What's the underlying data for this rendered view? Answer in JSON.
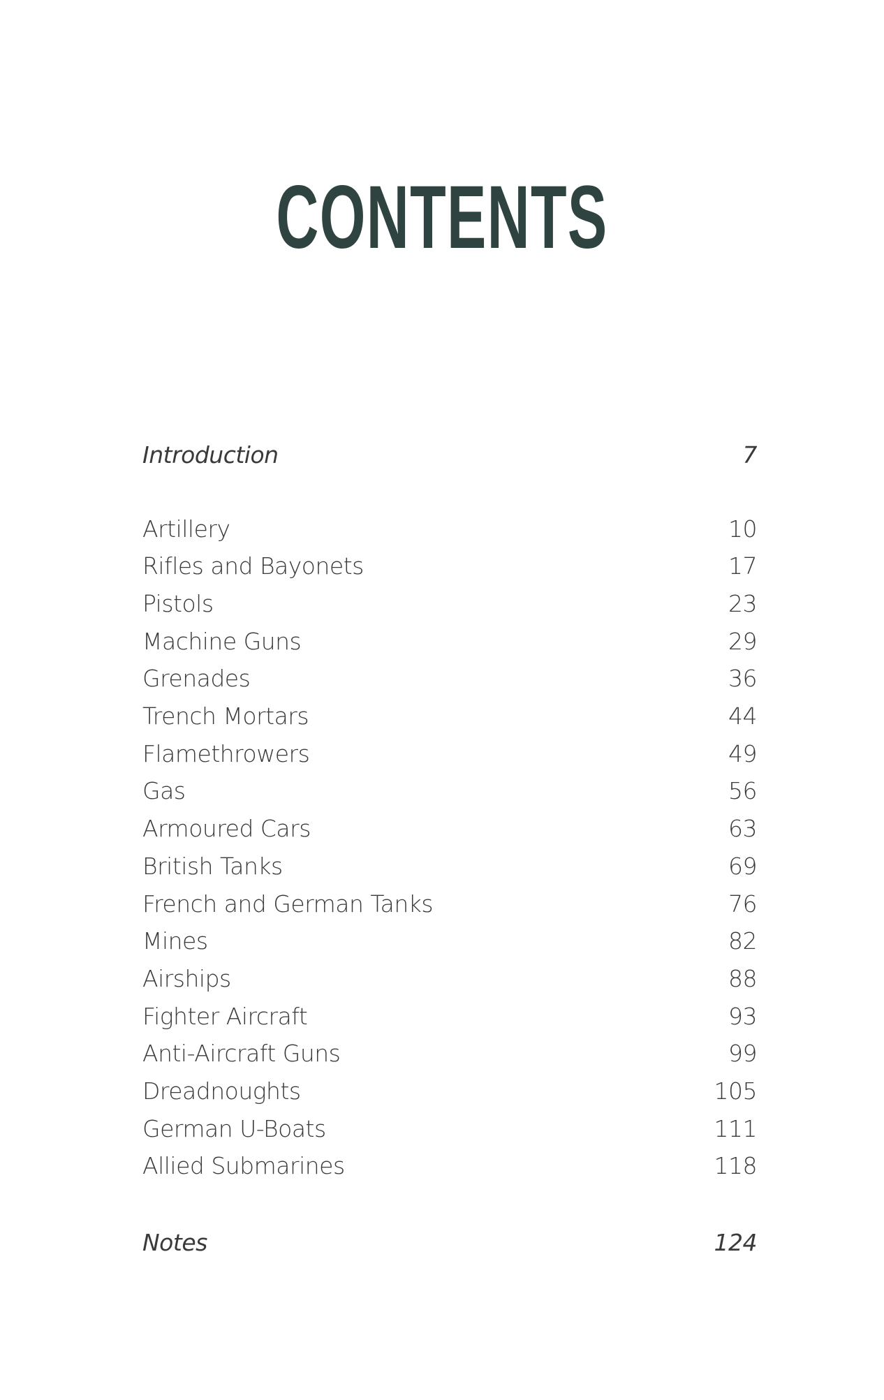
{
  "title": "CONTENTS",
  "introduction": {
    "label": "Introduction",
    "page": "7"
  },
  "entries": [
    {
      "label": "Artillery",
      "page": "10"
    },
    {
      "label": "Rifles and Bayonets",
      "page": "17"
    },
    {
      "label": "Pistols",
      "page": "23"
    },
    {
      "label": "Machine Guns",
      "page": "29"
    },
    {
      "label": "Grenades",
      "page": "36"
    },
    {
      "label": "Trench Mortars",
      "page": "44"
    },
    {
      "label": "Flamethrowers",
      "page": "49"
    },
    {
      "label": "Gas",
      "page": "56"
    },
    {
      "label": "Armoured Cars",
      "page": "63"
    },
    {
      "label": "British Tanks",
      "page": "69"
    },
    {
      "label": "French and German Tanks",
      "page": "76"
    },
    {
      "label": "Mines",
      "page": "82"
    },
    {
      "label": "Airships",
      "page": "88"
    },
    {
      "label": "Fighter Aircraft",
      "page": "93"
    },
    {
      "label": "Anti-Aircraft Guns",
      "page": "99"
    },
    {
      "label": "Dreadnoughts",
      "page": "105"
    },
    {
      "label": "German U-Boats",
      "page": "111"
    },
    {
      "label": "Allied Submarines",
      "page": "118"
    }
  ],
  "notes": {
    "label": "Notes",
    "page": "124"
  },
  "colors": {
    "title": "#2f4440",
    "text": "#3a3a3a"
  }
}
